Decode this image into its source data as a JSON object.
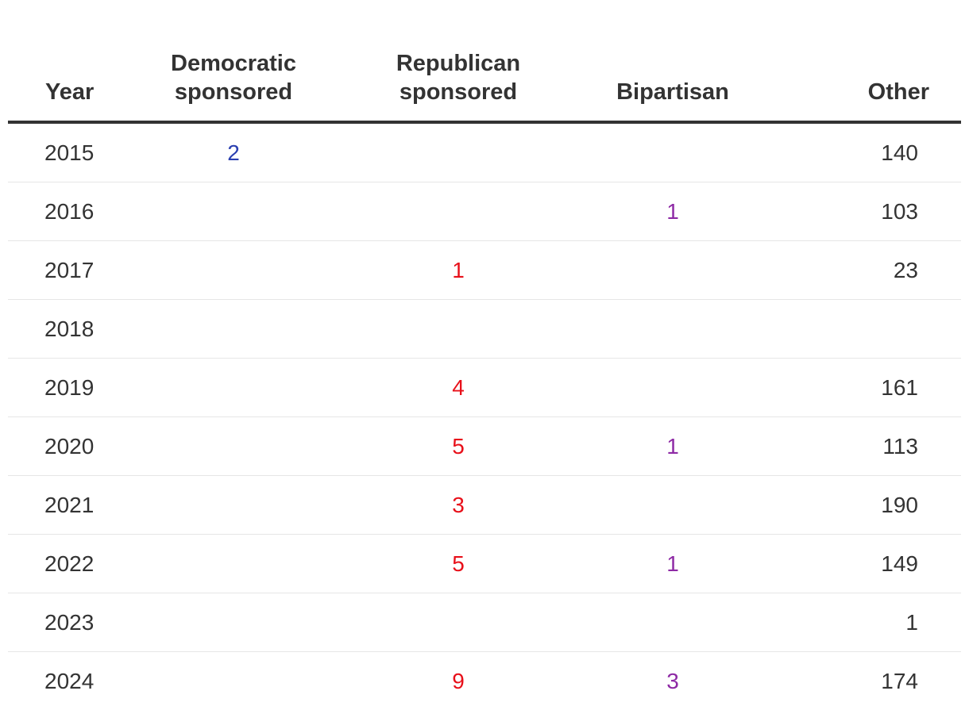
{
  "chart_data": {
    "type": "table",
    "columns": [
      "Year",
      "Democratic sponsored",
      "Republican sponsored",
      "Bipartisan",
      "Other"
    ],
    "header_lines": [
      [
        "Year"
      ],
      [
        "Democratic",
        "sponsored"
      ],
      [
        "Republican",
        "sponsored"
      ],
      [
        "Bipartisan"
      ],
      [
        "Other"
      ]
    ],
    "colors": {
      "democratic": "#2a3fb0",
      "republican": "#e8101a",
      "bipartisan": "#8e2aa5",
      "other": "#333333"
    },
    "rows": [
      {
        "year": "2015",
        "democratic": "2",
        "republican": "",
        "bipartisan": "",
        "other": "140"
      },
      {
        "year": "2016",
        "democratic": "",
        "republican": "",
        "bipartisan": "1",
        "other": "103"
      },
      {
        "year": "2017",
        "democratic": "",
        "republican": "1",
        "bipartisan": "",
        "other": "23"
      },
      {
        "year": "2018",
        "democratic": "",
        "republican": "",
        "bipartisan": "",
        "other": ""
      },
      {
        "year": "2019",
        "democratic": "",
        "republican": "4",
        "bipartisan": "",
        "other": "161"
      },
      {
        "year": "2020",
        "democratic": "",
        "republican": "5",
        "bipartisan": "1",
        "other": "113"
      },
      {
        "year": "2021",
        "democratic": "",
        "republican": "3",
        "bipartisan": "",
        "other": "190"
      },
      {
        "year": "2022",
        "democratic": "",
        "republican": "5",
        "bipartisan": "1",
        "other": "149"
      },
      {
        "year": "2023",
        "democratic": "",
        "republican": "",
        "bipartisan": "",
        "other": "1"
      },
      {
        "year": "2024",
        "democratic": "",
        "republican": "9",
        "bipartisan": "3",
        "other": "174"
      }
    ]
  }
}
